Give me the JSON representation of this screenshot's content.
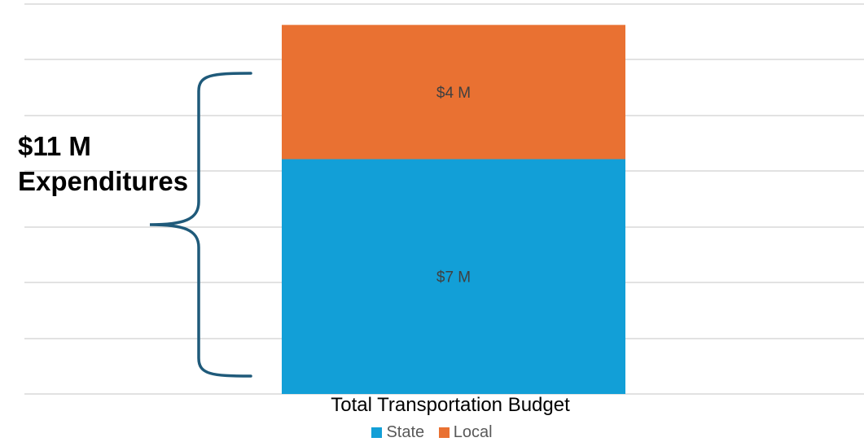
{
  "annotation": {
    "line1": "$11 M",
    "line2": "Expenditures"
  },
  "colors": {
    "state": "#129FD7",
    "local": "#E97132",
    "gridline": "#D9D9D9",
    "brace": "#1F5A7A",
    "label": "#404040"
  },
  "chart_data": {
    "type": "bar",
    "stacked": true,
    "categories": [
      "Total Transportation Budget"
    ],
    "series": [
      {
        "name": "State",
        "values": [
          7
        ],
        "label": "$7 M"
      },
      {
        "name": "Local",
        "values": [
          4
        ],
        "label": "$4 M"
      }
    ],
    "ylim": [
      0,
      11.5
    ],
    "grid": true,
    "legend": "bottom"
  }
}
